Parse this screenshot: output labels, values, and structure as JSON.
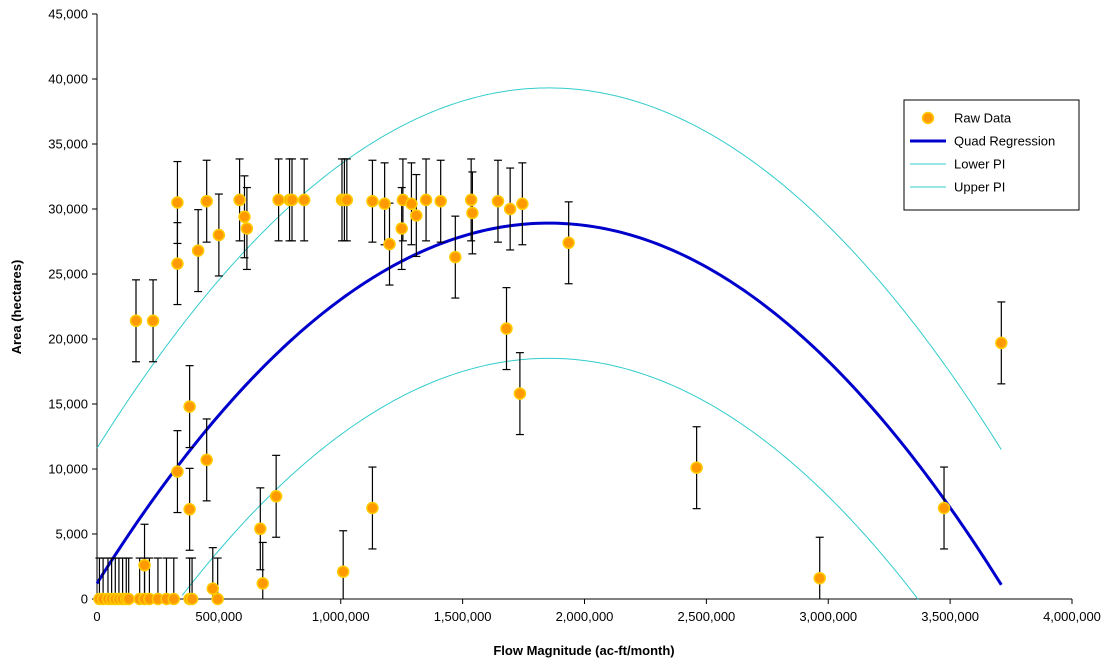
{
  "chart_data": {
    "type": "scatter",
    "xlabel": "Flow Magnitude (ac-ft/month)",
    "ylabel": "Area (hectares)",
    "xlim": [
      0,
      4000000
    ],
    "ylim": [
      0,
      45000
    ],
    "x_ticks": [
      0,
      500000,
      1000000,
      1500000,
      2000000,
      2500000,
      3000000,
      3500000,
      4000000
    ],
    "y_ticks": [
      0,
      5000,
      10000,
      15000,
      20000,
      25000,
      30000,
      35000,
      40000,
      45000
    ],
    "x_tick_labels": [
      "0",
      "500,000",
      "1,000,000",
      "1,500,000",
      "2,000,000",
      "2,500,000",
      "3,000,000",
      "3,500,000",
      "4,000,000"
    ],
    "y_tick_labels": [
      "0",
      "5,000",
      "10,000",
      "15,000",
      "20,000",
      "25,000",
      "30,000",
      "35,000",
      "40,000",
      "45,000"
    ],
    "grid": false,
    "legend_position": "top-right",
    "error_bar": 3150,
    "legend": [
      {
        "label": "Raw Data",
        "kind": "marker",
        "color": "#FF9900",
        "edge": "#FFCC00"
      },
      {
        "label": "Quad Regression",
        "kind": "line",
        "color": "#0000CC"
      },
      {
        "label": "Lower PI",
        "kind": "line",
        "color": "#33CCCC"
      },
      {
        "label": "Upper PI",
        "kind": "line",
        "color": "#33CCCC"
      }
    ],
    "series": [
      {
        "name": "Raw Data",
        "type": "scatter",
        "color": "#FF9900",
        "edge": "#FFCC00",
        "points": [
          [
            10000,
            0
          ],
          [
            25000,
            0
          ],
          [
            45000,
            0
          ],
          [
            60000,
            0
          ],
          [
            75000,
            0
          ],
          [
            90000,
            0
          ],
          [
            105000,
            0
          ],
          [
            120000,
            0
          ],
          [
            130000,
            0
          ],
          [
            175000,
            0
          ],
          [
            195000,
            0
          ],
          [
            215000,
            0
          ],
          [
            250000,
            0
          ],
          [
            285000,
            0
          ],
          [
            315000,
            0
          ],
          [
            380000,
            0
          ],
          [
            390000,
            0
          ],
          [
            495000,
            0
          ],
          [
            160000,
            21400
          ],
          [
            230000,
            21400
          ],
          [
            195000,
            2600
          ],
          [
            475000,
            800
          ],
          [
            680000,
            1200
          ],
          [
            330000,
            30500
          ],
          [
            330000,
            25800
          ],
          [
            330000,
            9800
          ],
          [
            380000,
            14800
          ],
          [
            380000,
            6900
          ],
          [
            415000,
            26800
          ],
          [
            450000,
            30600
          ],
          [
            450000,
            10700
          ],
          [
            500000,
            28000
          ],
          [
            585000,
            30700
          ],
          [
            605000,
            29400
          ],
          [
            615000,
            28500
          ],
          [
            670000,
            5400
          ],
          [
            735000,
            7900
          ],
          [
            745000,
            30700
          ],
          [
            790000,
            30700
          ],
          [
            800000,
            30700
          ],
          [
            850000,
            30700
          ],
          [
            1005000,
            30700
          ],
          [
            1015000,
            30700
          ],
          [
            1025000,
            30700
          ],
          [
            1010000,
            2100
          ],
          [
            1130000,
            30600
          ],
          [
            1130000,
            7000
          ],
          [
            1180000,
            30400
          ],
          [
            1200000,
            27300
          ],
          [
            1250000,
            28500
          ],
          [
            1255000,
            30700
          ],
          [
            1290000,
            30400
          ],
          [
            1310000,
            29500
          ],
          [
            1350000,
            30700
          ],
          [
            1410000,
            30600
          ],
          [
            1470000,
            26300
          ],
          [
            1535000,
            30700
          ],
          [
            1540000,
            29700
          ],
          [
            1645000,
            30600
          ],
          [
            1680000,
            20800
          ],
          [
            1695000,
            30000
          ],
          [
            1735000,
            15800
          ],
          [
            1745000,
            30400
          ],
          [
            1935000,
            27400
          ],
          [
            2460000,
            10100
          ],
          [
            2965000,
            1600
          ],
          [
            3475000,
            7000
          ],
          [
            3710000,
            19700
          ]
        ]
      },
      {
        "name": "Quad Regression",
        "type": "line",
        "color": "#0000CC",
        "coefficients": {
          "a": -8.07e-09,
          "b": 0.02991,
          "c": 1200
        },
        "x_range": [
          0,
          3710000
        ]
      },
      {
        "name": "Lower PI",
        "type": "line",
        "color": "#33CCCC",
        "coefficients": {
          "a": -8.07e-09,
          "b": 0.02991,
          "c": -9200
        },
        "x_range": [
          350000,
          3370000
        ]
      },
      {
        "name": "Upper PI",
        "type": "line",
        "color": "#33CCCC",
        "coefficients": {
          "a": -8.07e-09,
          "b": 0.02991,
          "c": 11600
        },
        "x_range": [
          0,
          3710000
        ]
      }
    ]
  }
}
